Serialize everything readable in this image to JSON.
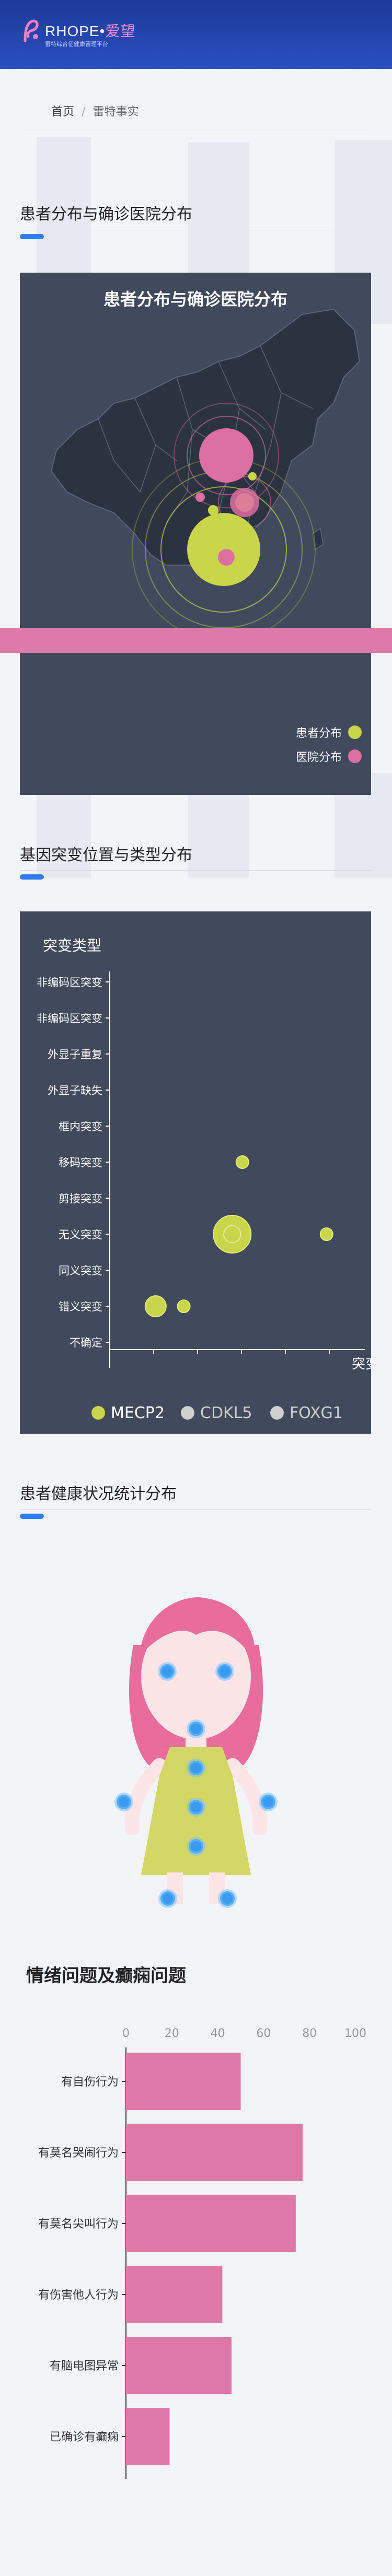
{
  "header": {
    "brand_en": "RHOPE",
    "brand_dot": "•",
    "brand_cn": "爱望",
    "subtitle": "雷特综合征健康管理平台"
  },
  "breadcrumb": {
    "home": "首页",
    "separator": "/",
    "current": "雷特事实"
  },
  "sections": {
    "distribution": "患者分布与确诊医院分布",
    "gene": "基因突变位置与类型分布",
    "health": "患者健康状况统计分布"
  },
  "colors": {
    "patient": "#c9d64a",
    "hospital": "#de6fa3",
    "accent": "#2f7df6",
    "panel": "#404a5c",
    "body_dots": "#3a9af0"
  },
  "chart_data": [
    {
      "type": "scatter",
      "title": "患者分布与确诊医院分布",
      "legend": [
        "患者分布",
        "医院分布"
      ],
      "legend_position": "bottom-right",
      "series": [
        {
          "name": "患者分布",
          "values": [
            5,
            3,
            2,
            1
          ]
        },
        {
          "name": "医院分布",
          "values": [
            4,
            2,
            1,
            1
          ]
        }
      ]
    },
    {
      "type": "scatter",
      "ylabel": "突变类型",
      "xlabel": "突变",
      "categories": [
        "非编码区突变",
        "非编码区突变",
        "外显子重复",
        "外显子缺失",
        "框内突变",
        "移码突变",
        "剪接突变",
        "无义突变",
        "同义突变",
        "错义突变",
        "不确定"
      ],
      "legend": [
        "MECP2",
        "CDKL5",
        "FOXG1"
      ],
      "legend_position": "bottom",
      "series": [
        {
          "name": "MECP2",
          "points": [
            {
              "x": 52,
              "y": "移码突变",
              "size": 1
            },
            {
              "x": 48,
              "y": "无义突变",
              "size": 4
            },
            {
              "x": 85,
              "y": "无义突变",
              "size": 1
            },
            {
              "x": 18,
              "y": "错义突变",
              "size": 2
            },
            {
              "x": 29,
              "y": "错义突变",
              "size": 1
            }
          ]
        },
        {
          "name": "CDKL5",
          "points": []
        },
        {
          "name": "FOXG1",
          "points": []
        }
      ]
    },
    {
      "type": "bar",
      "orientation": "horizontal",
      "title": "情绪问题及癫痫问题",
      "categories": [
        "有自伤行为",
        "有莫名哭闹行为",
        "有莫名尖叫行为",
        "有伤害他人行为",
        "有脑电图异常",
        "已确诊有癫痫"
      ],
      "values": [
        50,
        77,
        74,
        42,
        46,
        19
      ],
      "xlim": [
        0,
        100
      ],
      "xticks": [
        0,
        20,
        40,
        60,
        80,
        100
      ]
    }
  ]
}
